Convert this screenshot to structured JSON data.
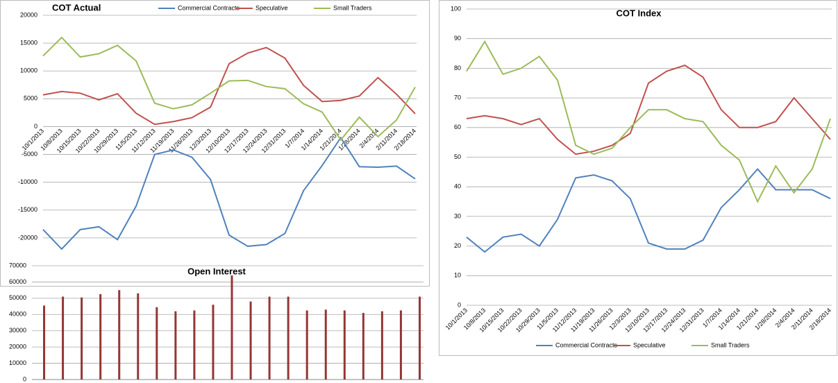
{
  "chart_data": [
    {
      "type": "line",
      "title": "COT Actual",
      "categories": [
        "10/1/2013",
        "10/8/2013",
        "10/15/2013",
        "10/22/2013",
        "10/29/2013",
        "11/5/2013",
        "11/12/2013",
        "11/19/2013",
        "11/26/2013",
        "12/3/2013",
        "12/10/2013",
        "12/17/2013",
        "12/24/2013",
        "12/31/2013",
        "1/7/2014",
        "1/14/2014",
        "1/21/2014",
        "1/28/2014",
        "2/4/2014",
        "2/11/2014",
        "2/18/2014"
      ],
      "series": [
        {
          "name": "Commercial Contracts",
          "color": "#4f81bd",
          "values": [
            -18500,
            -22000,
            -18500,
            -18000,
            -20300,
            -14300,
            -5000,
            -4200,
            -5500,
            -9500,
            -19500,
            -21500,
            -21200,
            -19200,
            -11500,
            -7000,
            -2000,
            -7200,
            -7300,
            -7100,
            -9400
          ]
        },
        {
          "name": "Speculative",
          "color": "#c0504d",
          "values": [
            5700,
            6300,
            6000,
            4800,
            5900,
            2400,
            400,
            900,
            1600,
            3500,
            11300,
            13200,
            14200,
            12300,
            7400,
            4500,
            4700,
            5500,
            8800,
            5800,
            2300
          ]
        },
        {
          "name": "Small Traders",
          "color": "#9bbb59",
          "values": [
            12700,
            16000,
            12500,
            13100,
            14600,
            11800,
            4200,
            3200,
            3900,
            6000,
            8200,
            8300,
            7200,
            6800,
            4100,
            2600,
            -2400,
            1700,
            -1800,
            1200,
            7100
          ]
        }
      ],
      "ylim": [
        -25000,
        20000
      ],
      "yticks": [
        -20000,
        -15000,
        -10000,
        -5000,
        0,
        5000,
        10000,
        15000,
        20000
      ],
      "grid": true,
      "legend": "top"
    },
    {
      "type": "bar",
      "title": "Open Interest",
      "color": "#943634",
      "values": [
        45500,
        51000,
        50500,
        52500,
        55000,
        53000,
        44500,
        42000,
        42500,
        46000,
        64000,
        48000,
        51000,
        51000,
        42500,
        43000,
        42500,
        41000,
        42000,
        42500,
        51000
      ],
      "ylim": [
        0,
        70000
      ],
      "yticks": [
        0,
        10000,
        20000,
        30000,
        40000,
        50000,
        60000,
        70000
      ],
      "grid": true
    },
    {
      "type": "line",
      "title": "COT Index",
      "categories": [
        "10/1/2013",
        "10/8/2013",
        "10/15/2013",
        "10/22/2013",
        "10/29/2013",
        "11/5/2013",
        "11/12/2013",
        "11/19/2013",
        "11/26/2013",
        "12/3/2013",
        "12/10/2013",
        "12/17/2013",
        "12/24/2013",
        "12/31/2013",
        "1/7/2014",
        "1/14/2014",
        "1/21/2014",
        "1/28/2014",
        "2/4/2014",
        "2/11/2014",
        "2/18/2014"
      ],
      "series": [
        {
          "name": "Commercial Contracts",
          "color": "#4f81bd",
          "values": [
            23,
            18,
            23,
            24,
            20,
            29,
            43,
            44,
            42,
            36,
            21,
            19,
            19,
            22,
            33,
            39,
            46,
            39,
            39,
            39,
            36
          ]
        },
        {
          "name": "Speculative",
          "color": "#c0504d",
          "values": [
            63,
            64,
            63,
            61,
            63,
            56,
            51,
            52,
            54,
            58,
            75,
            79,
            81,
            77,
            66,
            60,
            60,
            62,
            70,
            63,
            56
          ]
        },
        {
          "name": "Small Traders",
          "color": "#9bbb59",
          "values": [
            79,
            89,
            78,
            80,
            84,
            76,
            54,
            51,
            53,
            60,
            66,
            66,
            63,
            62,
            54,
            49,
            35,
            47,
            38,
            46,
            63
          ]
        }
      ],
      "ylim": [
        0,
        100
      ],
      "yticks": [
        0,
        10,
        20,
        30,
        40,
        50,
        60,
        70,
        80,
        90,
        100
      ],
      "grid": true,
      "legend": "bottom"
    }
  ]
}
